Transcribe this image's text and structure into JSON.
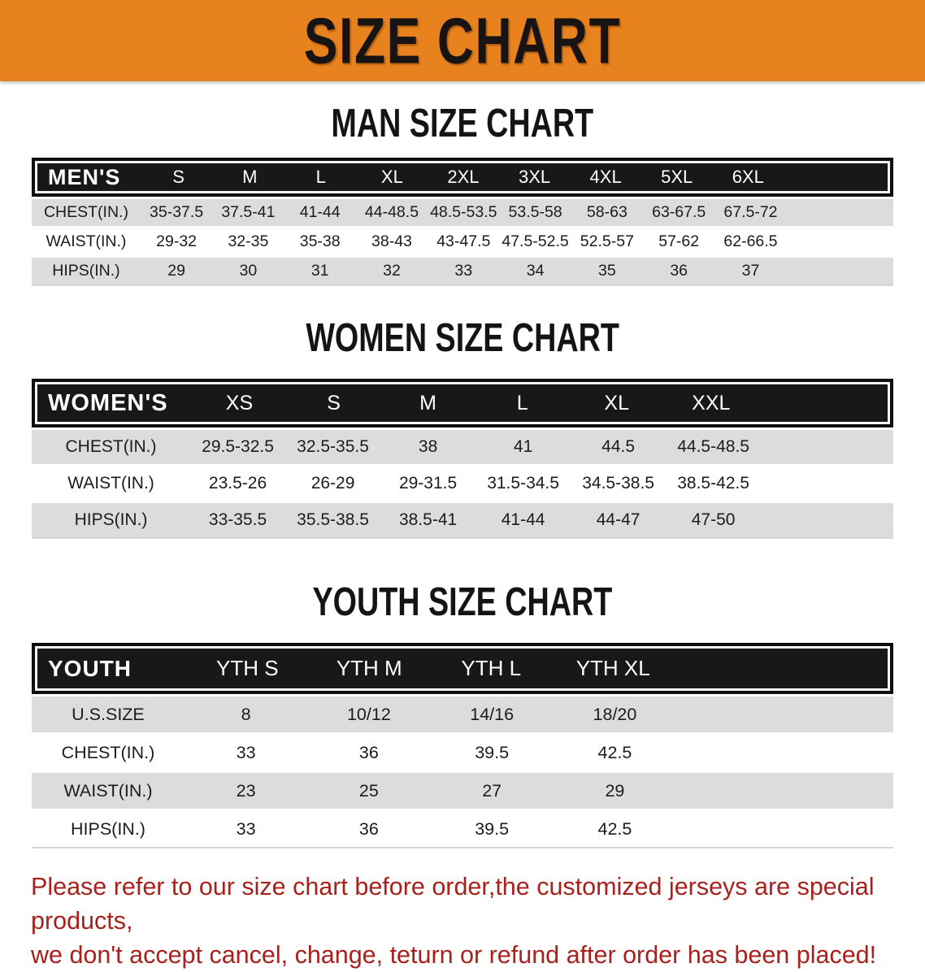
{
  "theme": {
    "banner_bg": "#E8821E",
    "header_row_bg": "#181818",
    "shaded_row_bg": "#DCDCDC",
    "disclaimer_color": "#A8211C"
  },
  "banner": {
    "title": "SIZE CHART"
  },
  "sections": [
    {
      "heading": "MAN SIZE CHART",
      "header_label": "MEN'S",
      "columns": [
        "S",
        "M",
        "L",
        "XL",
        "2XL",
        "3XL",
        "4XL",
        "5XL",
        "6XL"
      ],
      "rows": [
        {
          "label": "CHEST(IN.)",
          "values": [
            "35-37.5",
            "37.5-41",
            "41-44",
            "44-48.5",
            "48.5-53.5",
            "53.5-58",
            "58-63",
            "63-67.5",
            "67.5-72"
          ]
        },
        {
          "label": "WAIST(IN.)",
          "values": [
            "29-32",
            "32-35",
            "35-38",
            "38-43",
            "43-47.5",
            "47.5-52.5",
            "52.5-57",
            "57-62",
            "62-66.5"
          ]
        },
        {
          "label": "HIPS(IN.)",
          "values": [
            "29",
            "30",
            "31",
            "32",
            "33",
            "34",
            "35",
            "36",
            "37"
          ]
        }
      ]
    },
    {
      "heading": "WOMEN SIZE CHART",
      "header_label": "WOMEN'S",
      "columns": [
        "XS",
        "S",
        "M",
        "L",
        "XL",
        "XXL"
      ],
      "rows": [
        {
          "label": "CHEST(IN.)",
          "values": [
            "29.5-32.5",
            "32.5-35.5",
            "38",
            "41",
            "44.5",
            "44.5-48.5"
          ]
        },
        {
          "label": "WAIST(IN.)",
          "values": [
            "23.5-26",
            "26-29",
            "29-31.5",
            "31.5-34.5",
            "34.5-38.5",
            "38.5-42.5"
          ]
        },
        {
          "label": "HIPS(IN.)",
          "values": [
            "33-35.5",
            "35.5-38.5",
            "38.5-41",
            "41-44",
            "44-47",
            "47-50"
          ]
        }
      ]
    },
    {
      "heading": "YOUTH SIZE CHART",
      "header_label": "YOUTH",
      "columns": [
        "YTH S",
        "YTH M",
        "YTH L",
        "YTH XL"
      ],
      "rows": [
        {
          "label": "U.S.SIZE",
          "values": [
            "8",
            "10/12",
            "14/16",
            "18/20"
          ]
        },
        {
          "label": "CHEST(IN.)",
          "values": [
            "33",
            "36",
            "39.5",
            "42.5"
          ]
        },
        {
          "label": "WAIST(IN.)",
          "values": [
            "23",
            "25",
            "27",
            "29"
          ]
        },
        {
          "label": "HIPS(IN.)",
          "values": [
            "33",
            "36",
            "39.5",
            "42.5"
          ]
        }
      ]
    }
  ],
  "disclaimer": {
    "line1": "Please refer to our size chart before order,the customized jerseys are special products,",
    "line2": "we don't accept cancel, change, teturn or refund after order has been placed!"
  }
}
